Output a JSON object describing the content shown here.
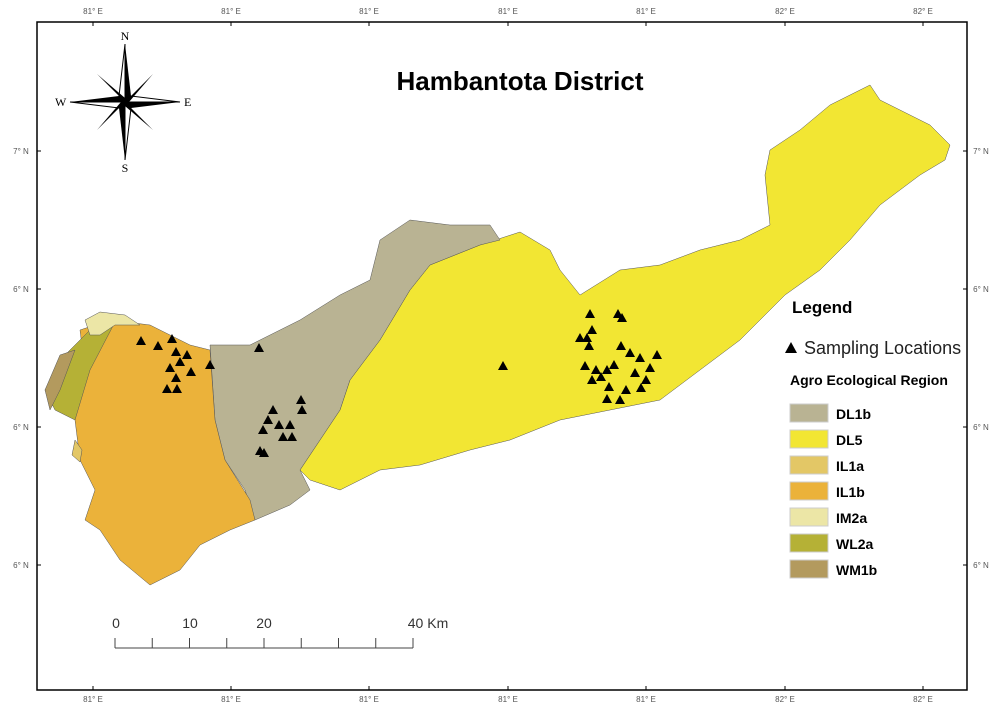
{
  "title": "Hambantota District",
  "compass": {
    "n": "N",
    "s": "S",
    "e": "E",
    "w": "W"
  },
  "top_ticks": [
    "81° E",
    "81° E",
    "81° E",
    "81° E",
    "81° E",
    "82° E",
    "82° E"
  ],
  "bottom_ticks": [
    "81° E",
    "81° E",
    "81° E",
    "81° E",
    "81° E",
    "82° E",
    "82° E"
  ],
  "left_ticks": [
    "7° N",
    "6° N",
    "6° N",
    "6° N"
  ],
  "right_ticks": [
    "7° N",
    "6° N",
    "6° N",
    "6° N"
  ],
  "legend": {
    "title": "Legend",
    "points_label": "Sampling Locations",
    "regions_title": "Agro Ecological Region",
    "regions": [
      {
        "code": "DL1b",
        "color": "#b9b393"
      },
      {
        "code": "DL5",
        "color": "#f2e633"
      },
      {
        "code": "IL1a",
        "color": "#e3c766"
      },
      {
        "code": "IL1b",
        "color": "#ebb23a"
      },
      {
        "code": "IM2a",
        "color": "#ece6a6"
      },
      {
        "code": "WL2a",
        "color": "#b5b136"
      },
      {
        "code": "WM1b",
        "color": "#b39a5e"
      }
    ]
  },
  "scale_bar": {
    "labels": [
      "0",
      "10",
      "20",
      "40 Km"
    ]
  }
}
